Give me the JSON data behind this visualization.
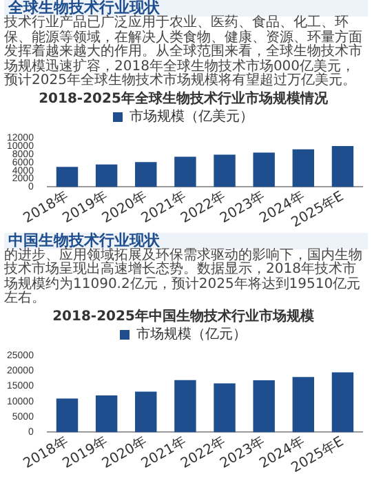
{
  "chart_data": [
    {
      "type": "bar",
      "title": "2018-2025年全球生物技术行业市场规模情况",
      "annotations": [
        "全球生物技术行业现状",
        "技术行业产品已广泛应用于农业、医药、食品、化工、环保、能源等领域，在解决人类食物、健康、资源、环量方面发挥着越来越大的作用。从全球范围来看，全球生物技术市场规模迅速扩容，2018年全球生物技术市场000亿美元，预计2025年全球生物技术市场规模将有望超过万亿美元。"
      ],
      "categories": [
        "2018年",
        "2019年",
        "2020年",
        "2021年",
        "2022年",
        "2023年",
        "2024年",
        "2025年E"
      ],
      "series": [
        {
          "name": "市场规模（亿美元）",
          "color": "#1f4e8f",
          "values": [
            4900,
            5500,
            6100,
            7400,
            7900,
            8400,
            9200,
            10000
          ]
        }
      ],
      "ylim": [
        0,
        12000
      ],
      "yticks": [
        0,
        2000,
        4000,
        6000,
        8000,
        10000,
        12000
      ],
      "legend": "top"
    },
    {
      "type": "bar",
      "title": "2018-2025年中国生物技术行业市场规模",
      "annotations": [
        "中国生物技术行业现状",
        "的进步、应用领域拓展及环保需求驱动的影响下，国内生物技术市场呈现出高速增长态势。数据显示，2018年技术市场规模约为11090.2亿元，预计2025年将达到19510亿元左右。"
      ],
      "categories": [
        "2018年",
        "2019年",
        "2020年",
        "2021年",
        "2022年",
        "2023年",
        "2024年",
        "2025年E"
      ],
      "series": [
        {
          "name": "市场规模（亿元）",
          "color": "#1f4e8f",
          "values": [
            11000,
            12000,
            13200,
            17000,
            15900,
            16900,
            18000,
            19500
          ]
        }
      ],
      "ylim": [
        0,
        25000
      ],
      "yticks": [
        0,
        5000,
        10000,
        15000,
        20000,
        25000
      ],
      "legend": "top"
    }
  ]
}
